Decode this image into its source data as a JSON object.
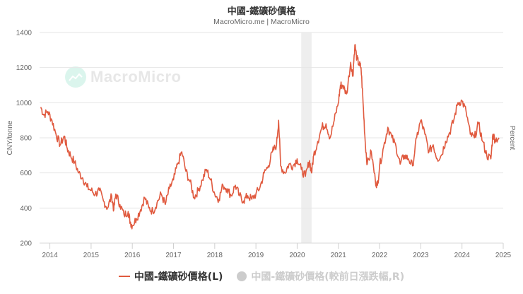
{
  "header": {
    "title": "中國-鐵礦砂價格",
    "subtitle": "MacroMicro.me | MacroMicro"
  },
  "watermark": {
    "text": "MacroMicro",
    "icon": "chart-line-icon"
  },
  "axes": {
    "left_title": "CNY/tonne",
    "right_title": "Percent"
  },
  "legend": {
    "items": [
      {
        "label": "中國-鐵礦砂價格(L)",
        "color": "#e05a3f",
        "marker": "line",
        "active": true
      },
      {
        "label": "中國-鐵礦砂價格(較前日漲跌幅,R)",
        "color": "#cccccc",
        "marker": "dot",
        "active": false
      }
    ]
  },
  "colors": {
    "series": "#e05a3f",
    "grid": "#e6e6e6",
    "shade": "#eeeeee",
    "text": "#666666"
  },
  "chart_data": {
    "type": "line",
    "title": "中國-鐵礦砂價格",
    "subtitle": "MacroMicro.me | MacroMicro",
    "xlabel": "",
    "ylabel": "CNY/tonne",
    "ylabel_right": "Percent",
    "ylim": [
      200,
      1400
    ],
    "yticks": [
      200,
      400,
      600,
      800,
      1000,
      1200,
      1400
    ],
    "xlim": [
      2013.75,
      2025.0
    ],
    "xticks": [
      "2014",
      "2015",
      "2016",
      "2017",
      "2018",
      "2019",
      "2020",
      "2021",
      "2022",
      "2023",
      "2024",
      "2025"
    ],
    "grid": true,
    "legend_position": "bottom",
    "shaded_region": [
      2020.1,
      2020.35
    ],
    "series": [
      {
        "name": "中國-鐵礦砂價格(L)",
        "axis": "left",
        "x": [
          2013.78,
          2013.85,
          2013.95,
          2014.05,
          2014.15,
          2014.25,
          2014.35,
          2014.42,
          2014.5,
          2014.6,
          2014.7,
          2014.8,
          2014.9,
          2015.0,
          2015.1,
          2015.2,
          2015.3,
          2015.4,
          2015.5,
          2015.55,
          2015.6,
          2015.7,
          2015.8,
          2015.9,
          2015.95,
          2016.0,
          2016.1,
          2016.2,
          2016.3,
          2016.4,
          2016.5,
          2016.6,
          2016.7,
          2016.8,
          2016.9,
          2017.0,
          2017.1,
          2017.2,
          2017.3,
          2017.4,
          2017.5,
          2017.6,
          2017.7,
          2017.8,
          2017.9,
          2018.0,
          2018.1,
          2018.2,
          2018.3,
          2018.4,
          2018.5,
          2018.6,
          2018.7,
          2018.8,
          2018.9,
          2019.0,
          2019.1,
          2019.2,
          2019.3,
          2019.4,
          2019.5,
          2019.55,
          2019.6,
          2019.7,
          2019.8,
          2019.9,
          2020.0,
          2020.1,
          2020.2,
          2020.3,
          2020.35,
          2020.4,
          2020.5,
          2020.6,
          2020.7,
          2020.8,
          2020.9,
          2021.0,
          2021.05,
          2021.1,
          2021.2,
          2021.3,
          2021.35,
          2021.4,
          2021.45,
          2021.5,
          2021.55,
          2021.6,
          2021.65,
          2021.7,
          2021.8,
          2021.9,
          2021.95,
          2022.0,
          2022.1,
          2022.2,
          2022.3,
          2022.4,
          2022.5,
          2022.6,
          2022.7,
          2022.8,
          2022.9,
          2023.0,
          2023.1,
          2023.2,
          2023.3,
          2023.4,
          2023.5,
          2023.6,
          2023.7,
          2023.8,
          2023.9,
          2024.0,
          2024.1,
          2024.2,
          2024.3,
          2024.4,
          2024.5,
          2024.6,
          2024.7,
          2024.75,
          2024.8,
          2024.9
        ],
        "values": [
          975,
          930,
          950,
          900,
          820,
          760,
          810,
          740,
          700,
          660,
          600,
          570,
          520,
          500,
          480,
          500,
          440,
          400,
          470,
          390,
          480,
          420,
          360,
          380,
          320,
          300,
          340,
          390,
          460,
          400,
          380,
          430,
          480,
          420,
          510,
          560,
          650,
          720,
          610,
          550,
          460,
          500,
          560,
          620,
          560,
          480,
          450,
          530,
          510,
          470,
          530,
          470,
          440,
          470,
          450,
          480,
          520,
          600,
          640,
          720,
          760,
          900,
          640,
          600,
          650,
          640,
          680,
          620,
          580,
          670,
          600,
          700,
          780,
          860,
          880,
          800,
          900,
          1000,
          1100,
          1100,
          1050,
          1230,
          1150,
          1330,
          1250,
          1220,
          1200,
          1000,
          780,
          650,
          720,
          550,
          530,
          640,
          750,
          860,
          800,
          750,
          650,
          700,
          680,
          640,
          800,
          900,
          820,
          720,
          760,
          680,
          700,
          780,
          830,
          900,
          1000,
          1010,
          950,
          820,
          800,
          880,
          780,
          700,
          680,
          820,
          790,
          800
        ]
      },
      {
        "name": "中國-鐵礦砂價格(較前日漲跌幅,R)",
        "axis": "right",
        "hidden": true,
        "values": []
      }
    ]
  }
}
